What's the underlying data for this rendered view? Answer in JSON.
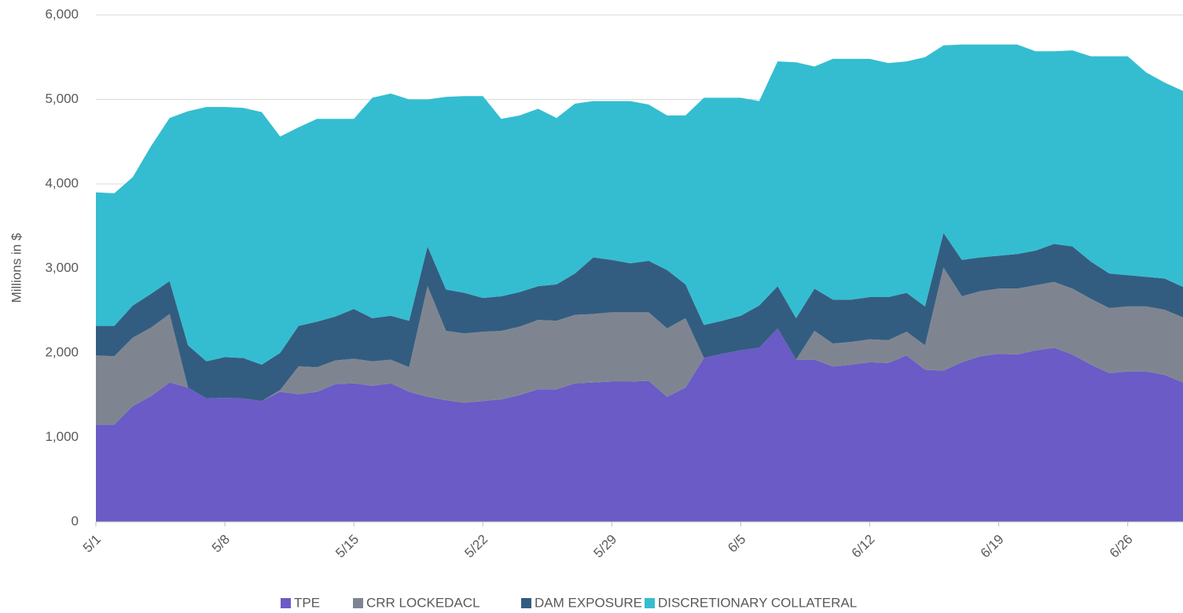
{
  "chart_data": {
    "type": "stacked_area",
    "y_label": "Millions in $",
    "categories": [
      "5/1",
      null,
      null,
      null,
      null,
      null,
      null,
      "5/8",
      null,
      null,
      null,
      null,
      null,
      null,
      "5/15",
      null,
      null,
      null,
      null,
      null,
      null,
      "5/22",
      null,
      null,
      null,
      null,
      null,
      null,
      "5/29",
      null,
      null,
      null,
      null,
      null,
      null,
      "6/5",
      null,
      null,
      null,
      null,
      null,
      null,
      "6/12",
      null,
      null,
      null,
      null,
      null,
      null,
      "6/19",
      null,
      null,
      null,
      null,
      null,
      null,
      "6/26",
      null,
      null,
      null
    ],
    "series": [
      {
        "name": "TPE",
        "color": "#6a5bc6",
        "values": [
          1150,
          1150,
          1370,
          1490,
          1650,
          1590,
          1460,
          1470,
          1460,
          1430,
          1540,
          1510,
          1540,
          1630,
          1640,
          1610,
          1640,
          1540,
          1480,
          1440,
          1410,
          1430,
          1450,
          1500,
          1570,
          1570,
          1640,
          1650,
          1660,
          1660,
          1670,
          1480,
          1590,
          1940,
          1990,
          2030,
          2060,
          2290,
          1920,
          1920,
          1840,
          1860,
          1890,
          1880,
          1970,
          1800,
          1790,
          1890,
          1960,
          1990,
          1980,
          2030,
          2060,
          1980,
          1860,
          1760,
          1780,
          1780,
          1740,
          1650
        ]
      },
      {
        "name": "CRR LOCKEDACL",
        "color": "#7f8590",
        "values": [
          820,
          810,
          810,
          810,
          810,
          0,
          0,
          0,
          0,
          0,
          20,
          330,
          290,
          280,
          290,
          290,
          280,
          290,
          1310,
          820,
          820,
          820,
          810,
          810,
          820,
          810,
          810,
          810,
          820,
          820,
          810,
          810,
          820,
          0,
          0,
          0,
          0,
          0,
          0,
          340,
          270,
          270,
          270,
          270,
          280,
          290,
          1220,
          780,
          770,
          770,
          780,
          770,
          780,
          780,
          780,
          770,
          770,
          770,
          770,
          770
        ]
      },
      {
        "name": "DAM EXPOSURE",
        "color": "#335d80",
        "values": [
          350,
          360,
          380,
          400,
          390,
          500,
          440,
          480,
          480,
          430,
          440,
          480,
          540,
          520,
          590,
          510,
          520,
          550,
          470,
          490,
          480,
          400,
          410,
          410,
          400,
          430,
          490,
          670,
          620,
          580,
          610,
          690,
          400,
          390,
          390,
          410,
          500,
          500,
          490,
          500,
          520,
          500,
          500,
          510,
          460,
          460,
          410,
          430,
          400,
          390,
          410,
          410,
          450,
          500,
          440,
          410,
          370,
          350,
          370,
          360
        ]
      },
      {
        "name": "DISCRETIONARY COLLATERAL",
        "color": "#34bdd1",
        "values": [
          1580,
          1570,
          1520,
          1750,
          1930,
          2770,
          3010,
          2960,
          2960,
          2990,
          2560,
          2350,
          2400,
          2340,
          2250,
          2610,
          2630,
          2620,
          1740,
          2280,
          2330,
          2390,
          2100,
          2090,
          2100,
          1970,
          2010,
          1850,
          1880,
          1920,
          1850,
          1830,
          2000,
          2690,
          2640,
          2580,
          2420,
          2660,
          3030,
          2630,
          2850,
          2850,
          2820,
          2770,
          2740,
          2950,
          2220,
          2550,
          2520,
          2500,
          2480,
          2360,
          2280,
          2320,
          2430,
          2570,
          2590,
          2420,
          2320,
          2320
        ]
      }
    ],
    "ylim": [
      0,
      6000
    ],
    "yticks": [
      0,
      {
        "value": 1000,
        "label": "1,000"
      },
      {
        "value": 2000,
        "label": "2,000"
      },
      {
        "value": 3000,
        "label": "3,000"
      },
      {
        "value": 4000,
        "label": "4,000"
      },
      {
        "value": 5000,
        "label": "5,000"
      },
      {
        "value": 6000,
        "label": "6,000"
      }
    ],
    "grid": true,
    "legend": "bottom"
  }
}
